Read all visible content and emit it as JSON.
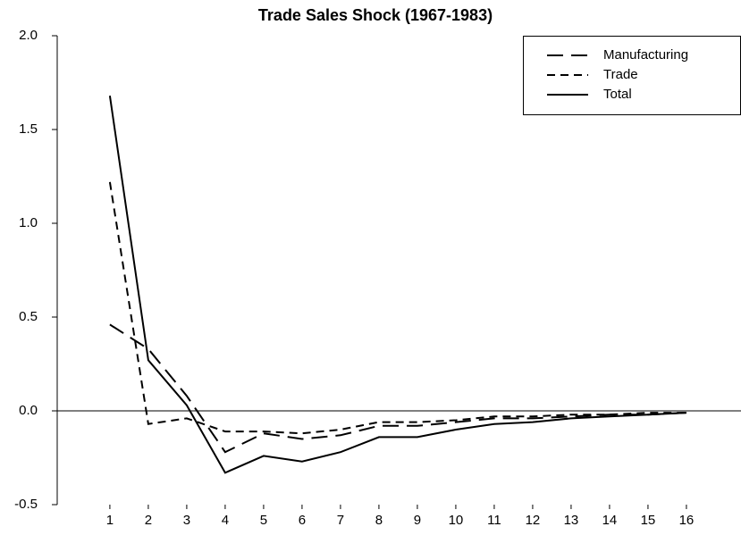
{
  "chart_data": {
    "type": "line",
    "title": "Trade Sales Shock (1967-1983)",
    "x": [
      1,
      2,
      3,
      4,
      5,
      6,
      7,
      8,
      9,
      10,
      11,
      12,
      13,
      14,
      15,
      16
    ],
    "xlim": [
      -0.37,
      17.42
    ],
    "xticks": [
      1,
      2,
      3,
      4,
      5,
      6,
      7,
      8,
      9,
      10,
      11,
      12,
      13,
      14,
      15,
      16
    ],
    "ylim": [
      -0.5,
      2.0
    ],
    "yticks": [
      {
        "value": -0.5,
        "label": "-0.5"
      },
      {
        "value": 0,
        "label": "0.0"
      },
      {
        "value": 0.5,
        "label": "0.5"
      },
      {
        "value": 1,
        "label": "1.0"
      },
      {
        "value": 1.5,
        "label": "1.5"
      },
      {
        "value": 2,
        "label": "2.0"
      }
    ],
    "zero_line": true,
    "legend": "upper right",
    "series": [
      {
        "name": "Manufacturing",
        "color": "#000000",
        "dash": "long",
        "values": [
          0.46,
          0.33,
          0.08,
          -0.22,
          -0.12,
          -0.15,
          -0.13,
          -0.08,
          -0.08,
          -0.06,
          -0.04,
          -0.04,
          -0.03,
          -0.02,
          -0.02,
          -0.01
        ]
      },
      {
        "name": "Trade",
        "color": "#000000",
        "dash": "short",
        "values": [
          1.22,
          -0.07,
          -0.04,
          -0.11,
          -0.11,
          -0.12,
          -0.1,
          -0.06,
          -0.06,
          -0.05,
          -0.03,
          -0.03,
          -0.02,
          -0.02,
          -0.01,
          -0.01
        ]
      },
      {
        "name": "Total",
        "color": "#000000",
        "dash": "solid",
        "values": [
          1.68,
          0.27,
          0.03,
          -0.33,
          -0.24,
          -0.27,
          -0.22,
          -0.14,
          -0.14,
          -0.1,
          -0.07,
          -0.06,
          -0.04,
          -0.03,
          -0.02,
          -0.01
        ]
      }
    ]
  }
}
